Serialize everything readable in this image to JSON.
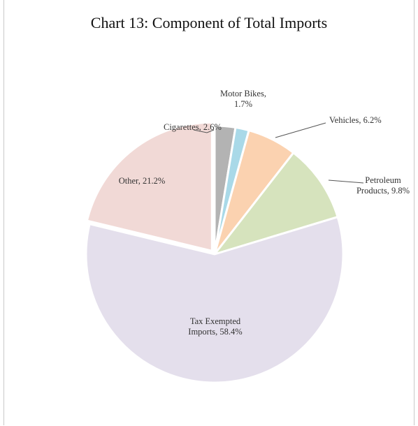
{
  "chart_data": {
    "type": "pie",
    "title": "Chart 13: Component of Total Imports",
    "slices": [
      {
        "label_lines": [
          "Cigarettes, 2.6%"
        ],
        "value": 2.6,
        "color": "#b3b3b3"
      },
      {
        "label_lines": [
          "Motor Bikes,",
          "1.7%"
        ],
        "value": 1.7,
        "color": "#a9d9e8"
      },
      {
        "label_lines": [
          "Vehicles, 6.2%"
        ],
        "value": 6.2,
        "color": "#fbd2b0"
      },
      {
        "label_lines": [
          "Petroleum",
          "Products, 9.8%"
        ],
        "value": 9.8,
        "color": "#d6e3bd"
      },
      {
        "label_lines": [
          "Tax Exempted",
          "Imports, 58.4%"
        ],
        "value": 58.4,
        "color": "#e4dfec"
      },
      {
        "label_lines": [
          "Other, 21.2%"
        ],
        "value": 21.2,
        "color": "#f1d9d6"
      }
    ]
  }
}
